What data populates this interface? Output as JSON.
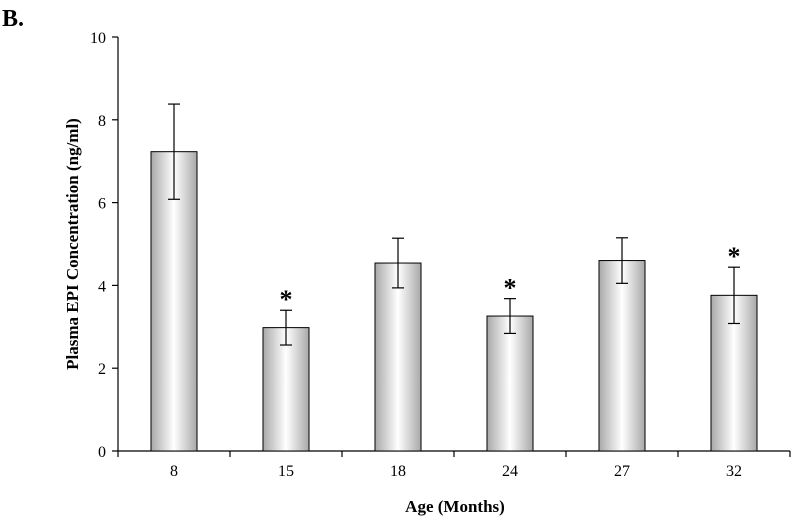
{
  "panel_label": "B.",
  "chart_data": {
    "type": "bar",
    "categories": [
      "8",
      "15",
      "18",
      "24",
      "27",
      "32"
    ],
    "values": [
      7.23,
      2.98,
      4.54,
      3.26,
      4.6,
      3.76
    ],
    "errors": [
      1.15,
      0.42,
      0.6,
      0.42,
      0.55,
      0.68
    ],
    "significance": [
      "",
      "*",
      "",
      "*",
      "",
      "*"
    ],
    "xlabel": "Age (Months)",
    "ylabel": "Plasma EPI Concentration (ng/ml)",
    "ylim": [
      0,
      10
    ],
    "yticks": [
      0,
      2,
      4,
      6,
      8,
      10
    ],
    "grid": false,
    "legend": "none"
  }
}
